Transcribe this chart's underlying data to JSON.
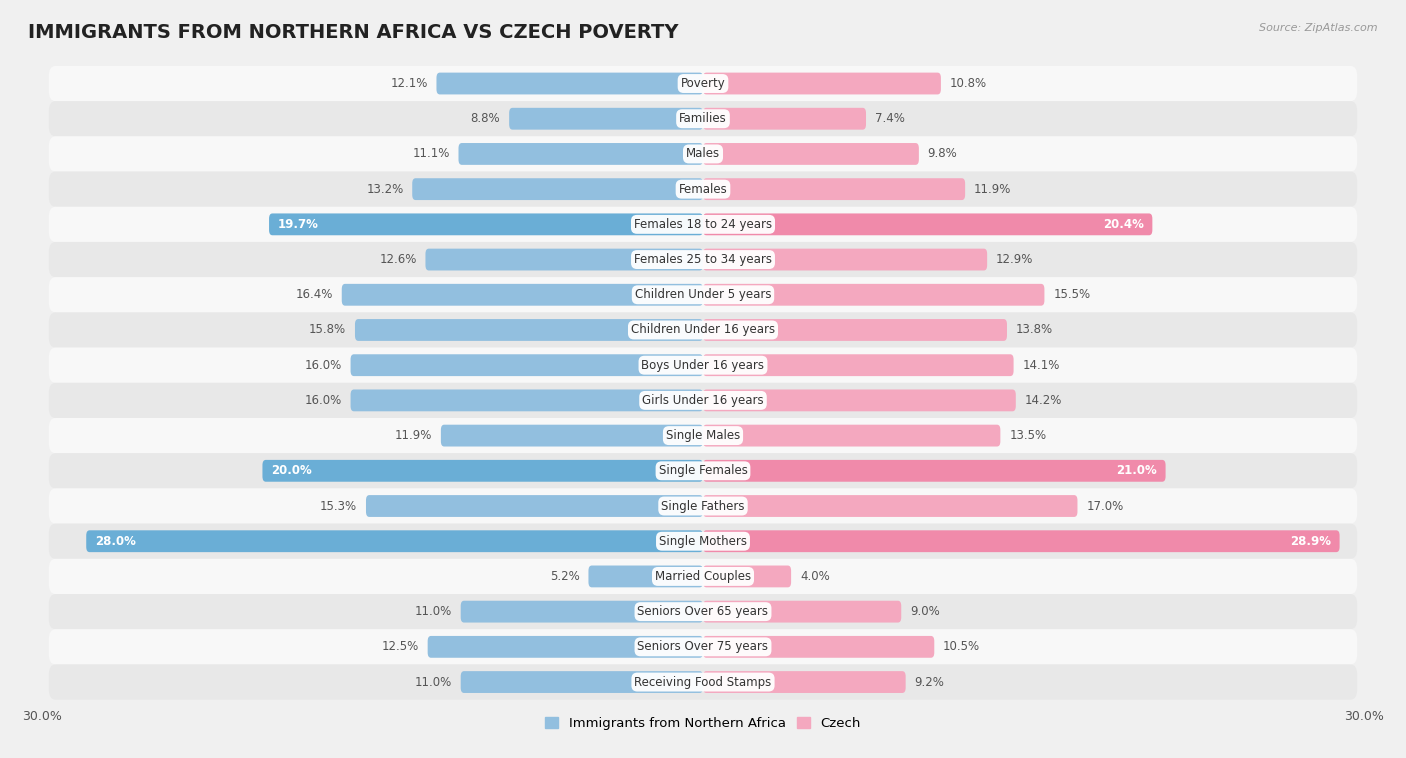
{
  "title": "IMMIGRANTS FROM NORTHERN AFRICA VS CZECH POVERTY",
  "source": "Source: ZipAtlas.com",
  "categories": [
    "Poverty",
    "Families",
    "Males",
    "Females",
    "Females 18 to 24 years",
    "Females 25 to 34 years",
    "Children Under 5 years",
    "Children Under 16 years",
    "Boys Under 16 years",
    "Girls Under 16 years",
    "Single Males",
    "Single Females",
    "Single Fathers",
    "Single Mothers",
    "Married Couples",
    "Seniors Over 65 years",
    "Seniors Over 75 years",
    "Receiving Food Stamps"
  ],
  "left_values": [
    12.1,
    8.8,
    11.1,
    13.2,
    19.7,
    12.6,
    16.4,
    15.8,
    16.0,
    16.0,
    11.9,
    20.0,
    15.3,
    28.0,
    5.2,
    11.0,
    12.5,
    11.0
  ],
  "right_values": [
    10.8,
    7.4,
    9.8,
    11.9,
    20.4,
    12.9,
    15.5,
    13.8,
    14.1,
    14.2,
    13.5,
    21.0,
    17.0,
    28.9,
    4.0,
    9.0,
    10.5,
    9.2
  ],
  "left_color": "#92bfdf",
  "right_color": "#f4a8bf",
  "left_highlight_color": "#6aaed6",
  "right_highlight_color": "#f08aaa",
  "highlight_rows": [
    4,
    11,
    13
  ],
  "background_color": "#f0f0f0",
  "row_bg_even": "#e8e8e8",
  "row_bg_odd": "#f8f8f8",
  "xlim": 30.0,
  "legend_left": "Immigrants from Northern Africa",
  "legend_right": "Czech",
  "title_fontsize": 14,
  "label_fontsize": 8.5,
  "value_fontsize": 8.5,
  "bar_height": 0.62
}
